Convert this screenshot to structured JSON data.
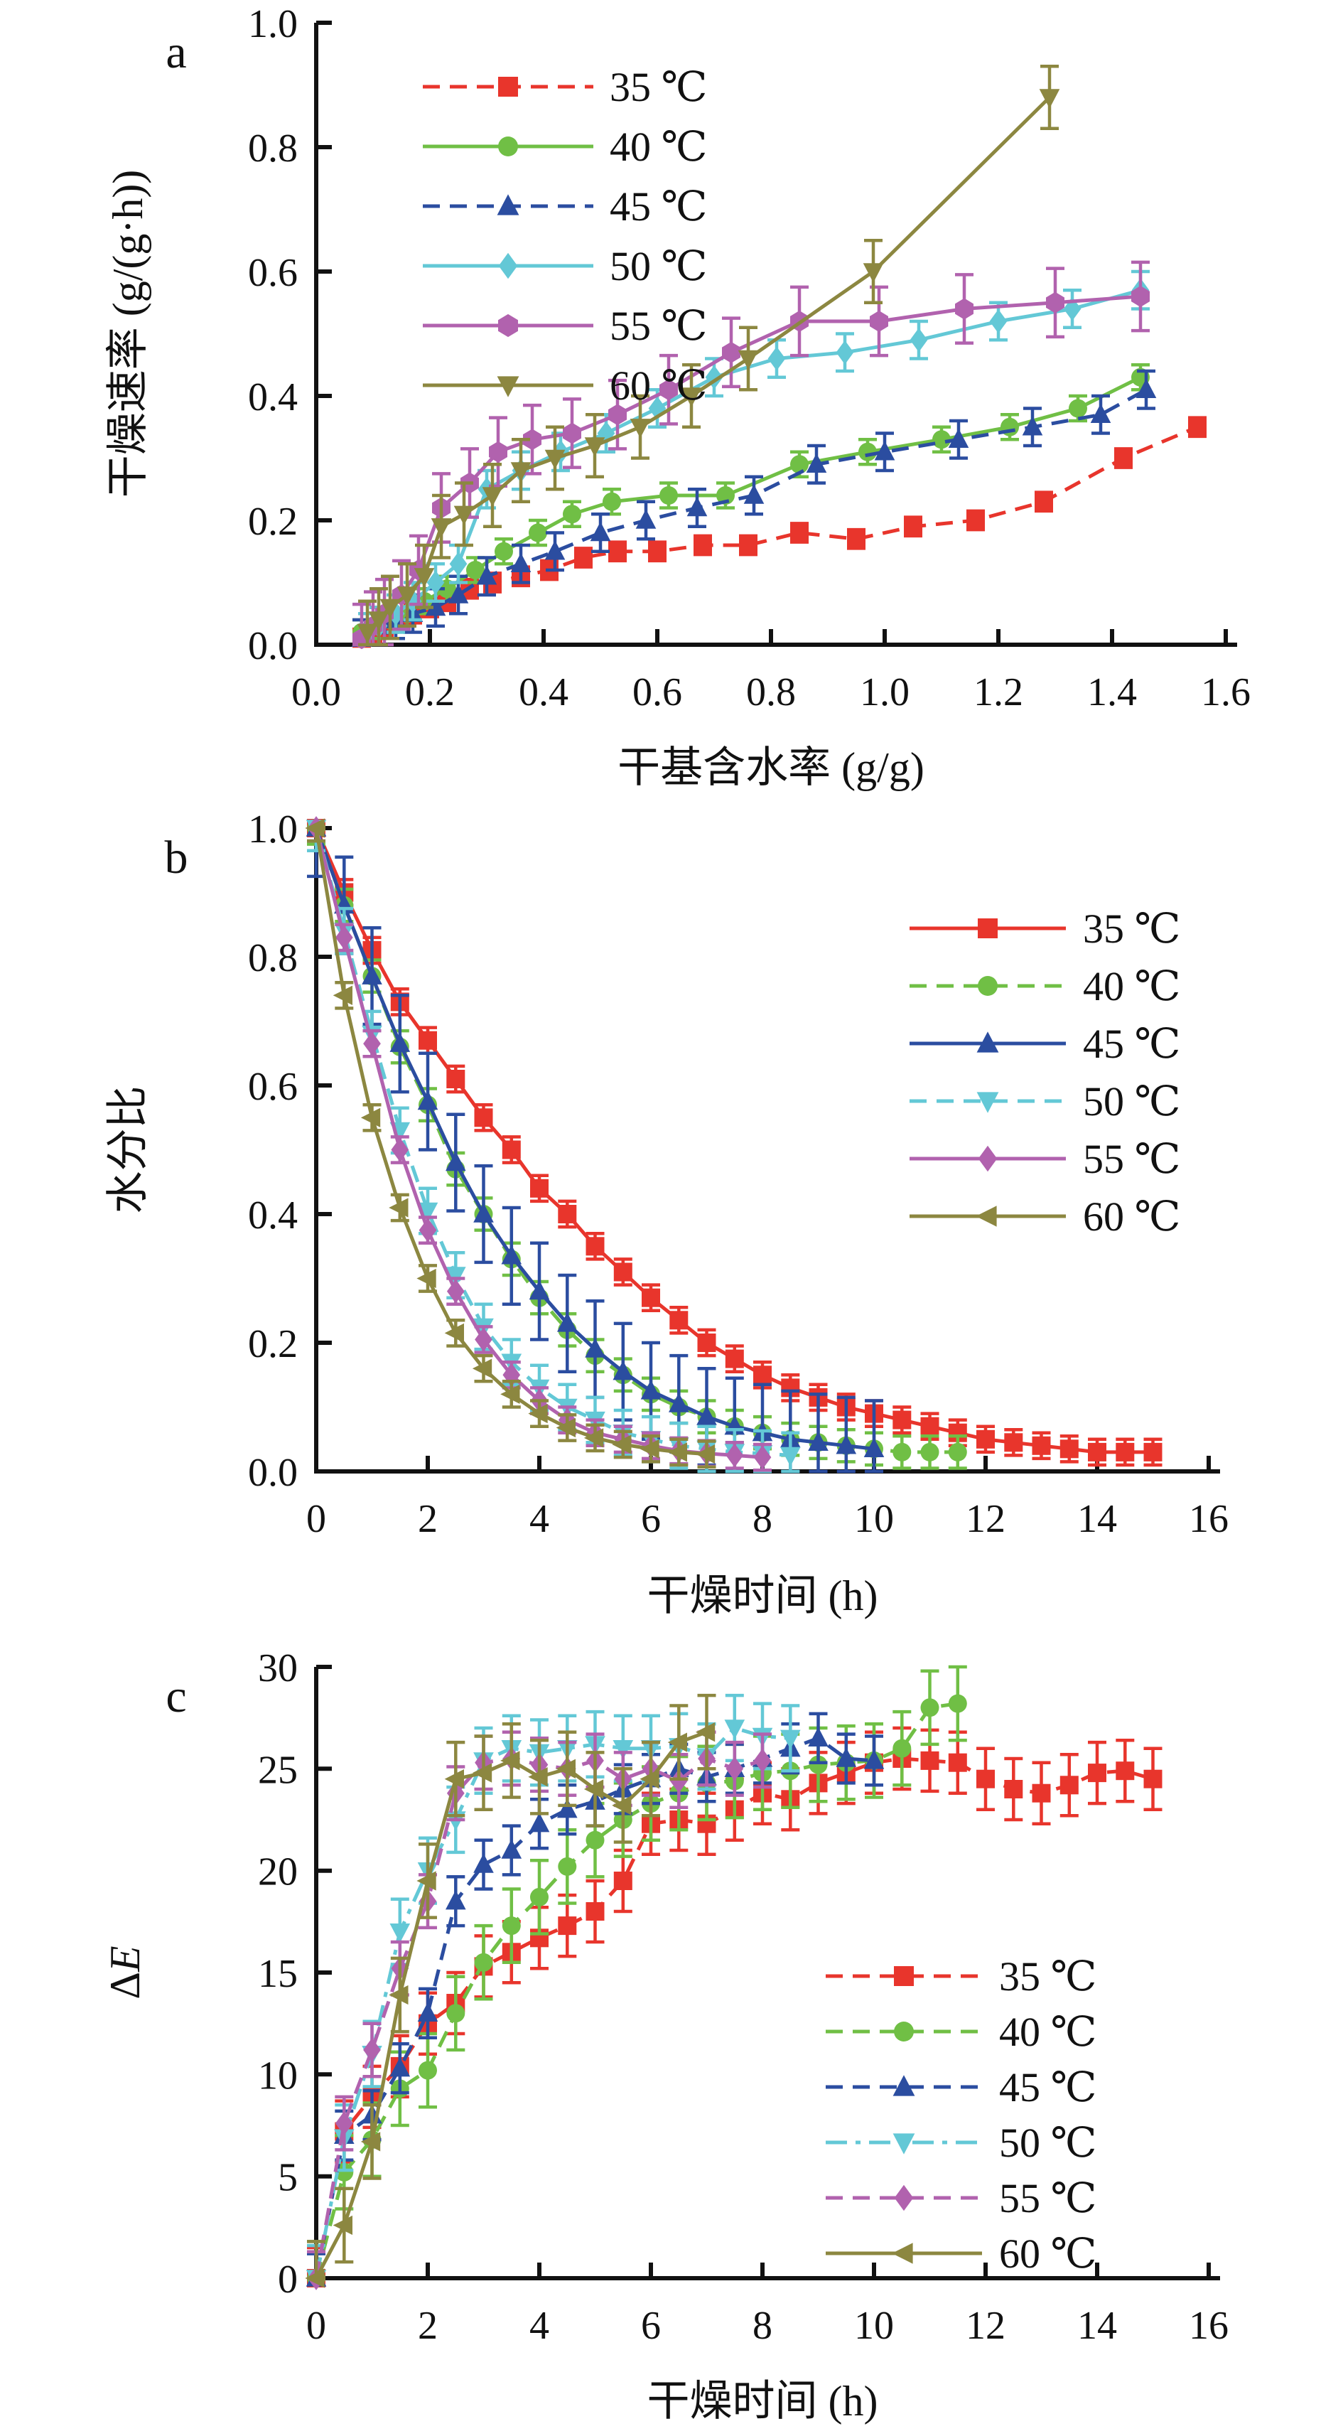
{
  "figure": {
    "background": "#ffffff",
    "temperature_unit": "℃",
    "panel_letters": [
      "a",
      "b",
      "c"
    ]
  },
  "chart_data": [
    {
      "id": "a",
      "type": "line",
      "panel_label": "a",
      "xlabel": "干基含水率 (g/g)",
      "ylabel_parts": [
        {
          "t": "干燥速率 (g/(g·h))",
          "italic": false
        }
      ],
      "xlim": [
        0,
        1.6
      ],
      "ylim": [
        0,
        1.0
      ],
      "grid": false,
      "legend_position": "upper-left-inside",
      "x_ticks": {
        "values": [
          0,
          0.2,
          0.4,
          0.6,
          0.8,
          1.0,
          1.2,
          1.4,
          1.6
        ],
        "labels": [
          "0.0",
          "0.2",
          "0.4",
          "0.6",
          "0.8",
          "1.0",
          "1.2",
          "1.4",
          "1.6"
        ]
      },
      "y_ticks": {
        "values": [
          0,
          0.2,
          0.4,
          0.6,
          0.8,
          1.0
        ],
        "labels": [
          "0.0",
          "0.2",
          "0.4",
          "0.6",
          "0.8",
          "1.0"
        ]
      },
      "series": [
        {
          "name": "35 ℃",
          "color": "#e8352c",
          "marker": "square",
          "line": "dashed",
          "err": 0.015,
          "x": [
            0.08,
            0.1,
            0.12,
            0.14,
            0.17,
            0.2,
            0.23,
            0.27,
            0.31,
            0.36,
            0.41,
            0.47,
            0.53,
            0.6,
            0.68,
            0.76,
            0.85,
            0.95,
            1.05,
            1.16,
            1.28,
            1.42,
            1.55
          ],
          "y": [
            0.01,
            0.02,
            0.03,
            0.04,
            0.05,
            0.06,
            0.07,
            0.09,
            0.1,
            0.11,
            0.12,
            0.14,
            0.15,
            0.15,
            0.16,
            0.16,
            0.18,
            0.17,
            0.19,
            0.2,
            0.23,
            0.3,
            0.35
          ]
        },
        {
          "name": "40 ℃",
          "color": "#70bf45",
          "marker": "circle",
          "line": "solid",
          "err": 0.02,
          "x": [
            0.08,
            0.1,
            0.13,
            0.16,
            0.19,
            0.23,
            0.28,
            0.33,
            0.39,
            0.45,
            0.52,
            0.62,
            0.72,
            0.85,
            0.97,
            1.1,
            1.22,
            1.34,
            1.45
          ],
          "y": [
            0.02,
            0.03,
            0.04,
            0.05,
            0.07,
            0.09,
            0.12,
            0.15,
            0.18,
            0.21,
            0.23,
            0.24,
            0.24,
            0.29,
            0.31,
            0.33,
            0.35,
            0.38,
            0.43
          ]
        },
        {
          "name": "45 ℃",
          "color": "#2b4da0",
          "marker": "triangle-up",
          "line": "dashed",
          "err": 0.03,
          "x": [
            0.08,
            0.11,
            0.14,
            0.17,
            0.21,
            0.25,
            0.3,
            0.36,
            0.42,
            0.5,
            0.58,
            0.67,
            0.77,
            0.88,
            1.0,
            1.13,
            1.26,
            1.38,
            1.46
          ],
          "y": [
            0.01,
            0.03,
            0.04,
            0.05,
            0.06,
            0.08,
            0.11,
            0.13,
            0.15,
            0.18,
            0.2,
            0.22,
            0.24,
            0.29,
            0.31,
            0.33,
            0.35,
            0.37,
            0.41
          ]
        },
        {
          "name": "50 ℃",
          "color": "#63c8d6",
          "marker": "diamond",
          "line": "solid",
          "err": 0.03,
          "x": [
            0.09,
            0.11,
            0.14,
            0.17,
            0.21,
            0.25,
            0.3,
            0.36,
            0.43,
            0.51,
            0.6,
            0.7,
            0.81,
            0.93,
            1.06,
            1.2,
            1.33,
            1.45
          ],
          "y": [
            0.02,
            0.03,
            0.05,
            0.07,
            0.1,
            0.13,
            0.25,
            0.28,
            0.31,
            0.34,
            0.38,
            0.43,
            0.46,
            0.47,
            0.49,
            0.52,
            0.54,
            0.57
          ]
        },
        {
          "name": "55 ℃",
          "color": "#b162ae",
          "marker": "hexagon",
          "line": "solid",
          "err": 0.055,
          "x": [
            0.08,
            0.1,
            0.12,
            0.15,
            0.18,
            0.22,
            0.27,
            0.32,
            0.38,
            0.45,
            0.53,
            0.62,
            0.73,
            0.85,
            0.99,
            1.14,
            1.3,
            1.45
          ],
          "y": [
            0.01,
            0.03,
            0.05,
            0.08,
            0.12,
            0.22,
            0.26,
            0.31,
            0.33,
            0.34,
            0.37,
            0.41,
            0.47,
            0.52,
            0.52,
            0.54,
            0.55,
            0.56
          ]
        },
        {
          "name": "60 ℃",
          "color": "#8c8740",
          "marker": "triangle-down",
          "line": "solid",
          "err": 0.05,
          "x": [
            0.09,
            0.11,
            0.13,
            0.16,
            0.19,
            0.22,
            0.26,
            0.31,
            0.36,
            0.42,
            0.49,
            0.57,
            0.66,
            0.76,
            0.98,
            1.29
          ],
          "y": [
            0.02,
            0.04,
            0.06,
            0.08,
            0.11,
            0.19,
            0.21,
            0.24,
            0.28,
            0.3,
            0.32,
            0.35,
            0.4,
            0.46,
            0.6,
            0.88
          ]
        }
      ]
    },
    {
      "id": "b",
      "type": "line",
      "panel_label": "b",
      "xlabel": "干燥时间 (h)",
      "ylabel_parts": [
        {
          "t": "水分比",
          "italic": false
        }
      ],
      "xlim": [
        0,
        16
      ],
      "ylim": [
        0,
        1.0
      ],
      "grid": false,
      "legend_position": "upper-right-inside",
      "x_ticks": {
        "values": [
          0,
          2,
          4,
          6,
          8,
          10,
          12,
          14,
          16
        ],
        "labels": [
          "0",
          "2",
          "4",
          "6",
          "8",
          "10",
          "12",
          "14",
          "16"
        ]
      },
      "y_ticks": {
        "values": [
          0,
          0.2,
          0.4,
          0.6,
          0.8,
          1.0
        ],
        "labels": [
          "0.0",
          "0.2",
          "0.4",
          "0.6",
          "0.8",
          "1.0"
        ]
      },
      "series": [
        {
          "name": "35 ℃",
          "color": "#e8352c",
          "marker": "square",
          "line": "solid",
          "err": 0.02,
          "x": [
            0,
            0.5,
            1,
            1.5,
            2,
            2.5,
            3,
            3.5,
            4,
            4.5,
            5,
            5.5,
            6,
            6.5,
            7,
            7.5,
            8,
            8.5,
            9,
            9.5,
            10,
            10.5,
            11,
            11.5,
            12,
            12.5,
            13,
            13.5,
            14,
            14.5,
            15
          ],
          "y": [
            1.0,
            0.9,
            0.81,
            0.73,
            0.67,
            0.61,
            0.55,
            0.5,
            0.44,
            0.4,
            0.35,
            0.31,
            0.27,
            0.235,
            0.2,
            0.175,
            0.15,
            0.13,
            0.115,
            0.1,
            0.09,
            0.08,
            0.07,
            0.06,
            0.05,
            0.045,
            0.04,
            0.035,
            0.03,
            0.03,
            0.03
          ]
        },
        {
          "name": "40 ℃",
          "color": "#70bf45",
          "marker": "circle",
          "line": "dashed",
          "err": 0.025,
          "x": [
            0,
            0.5,
            1,
            1.5,
            2,
            2.5,
            3,
            3.5,
            4,
            4.5,
            5,
            5.5,
            6,
            6.5,
            7,
            7.5,
            8,
            8.5,
            9,
            9.5,
            10,
            10.5,
            11,
            11.5
          ],
          "y": [
            1.0,
            0.88,
            0.77,
            0.66,
            0.57,
            0.47,
            0.4,
            0.33,
            0.27,
            0.22,
            0.18,
            0.15,
            0.12,
            0.1,
            0.085,
            0.07,
            0.06,
            0.05,
            0.045,
            0.04,
            0.035,
            0.03,
            0.03,
            0.03
          ]
        },
        {
          "name": "45 ℃",
          "color": "#2b4da0",
          "marker": "triangle-up",
          "line": "solid",
          "err": 0.075,
          "x": [
            0,
            0.5,
            1,
            1.5,
            2,
            2.5,
            3,
            3.5,
            4,
            4.5,
            5,
            5.5,
            6,
            6.5,
            7,
            7.5,
            8,
            8.5,
            9,
            9.5,
            10
          ],
          "y": [
            1.0,
            0.88,
            0.77,
            0.665,
            0.575,
            0.48,
            0.4,
            0.335,
            0.28,
            0.23,
            0.19,
            0.155,
            0.125,
            0.105,
            0.085,
            0.07,
            0.06,
            0.05,
            0.045,
            0.04,
            0.035
          ]
        },
        {
          "name": "50 ℃",
          "color": "#63c8d6",
          "marker": "triangle-down",
          "line": "dashed",
          "err": 0.035,
          "x": [
            0,
            0.5,
            1,
            1.5,
            2,
            2.5,
            3,
            3.5,
            4,
            4.5,
            5,
            5.5,
            6,
            6.5,
            7,
            7.5,
            8,
            8.5
          ],
          "y": [
            1.0,
            0.84,
            0.68,
            0.53,
            0.405,
            0.305,
            0.225,
            0.17,
            0.13,
            0.1,
            0.08,
            0.06,
            0.05,
            0.04,
            0.035,
            0.03,
            0.028,
            0.025
          ]
        },
        {
          "name": "55 ℃",
          "color": "#b162ae",
          "marker": "diamond",
          "line": "solid",
          "err": 0.02,
          "x": [
            0,
            0.5,
            1,
            1.5,
            2,
            2.5,
            3,
            3.5,
            4,
            4.5,
            5,
            5.5,
            6,
            6.5,
            7,
            7.5,
            8
          ],
          "y": [
            1.0,
            0.83,
            0.665,
            0.5,
            0.375,
            0.28,
            0.205,
            0.15,
            0.11,
            0.08,
            0.06,
            0.05,
            0.04,
            0.032,
            0.028,
            0.025,
            0.022
          ]
        },
        {
          "name": "60 ℃",
          "color": "#8c8740",
          "marker": "triangle-left",
          "line": "solid",
          "err": 0.02,
          "x": [
            0,
            0.5,
            1,
            1.5,
            2,
            2.5,
            3,
            3.5,
            4,
            4.5,
            5,
            5.5,
            6,
            6.5,
            7
          ],
          "y": [
            1.0,
            0.74,
            0.55,
            0.41,
            0.3,
            0.215,
            0.16,
            0.12,
            0.09,
            0.068,
            0.052,
            0.042,
            0.035,
            0.03,
            0.027
          ]
        }
      ]
    },
    {
      "id": "c",
      "type": "line",
      "panel_label": "c",
      "xlabel": "干燥时间 (h)",
      "ylabel_parts": [
        {
          "t": "Δ",
          "italic": false
        },
        {
          "t": "E",
          "italic": true
        }
      ],
      "xlim": [
        0,
        16
      ],
      "ylim": [
        0,
        30
      ],
      "grid": false,
      "legend_position": "lower-right-inside",
      "x_ticks": {
        "values": [
          0,
          2,
          4,
          6,
          8,
          10,
          12,
          14,
          16
        ],
        "labels": [
          "0",
          "2",
          "4",
          "6",
          "8",
          "10",
          "12",
          "14",
          "16"
        ]
      },
      "y_ticks": {
        "values": [
          0,
          5,
          10,
          15,
          20,
          25,
          30
        ],
        "labels": [
          "0",
          "5",
          "10",
          "15",
          "20",
          "25",
          "30"
        ]
      },
      "series": [
        {
          "name": "35 ℃",
          "color": "#e8352c",
          "marker": "square",
          "line": "dashed",
          "err": 1.5,
          "x": [
            0,
            0.5,
            1,
            1.5,
            2,
            2.5,
            3,
            3.5,
            4,
            4.5,
            5,
            5.5,
            6,
            6.5,
            7,
            7.5,
            8,
            8.5,
            9,
            9.5,
            10,
            10.5,
            11,
            11.5,
            12,
            12.5,
            13,
            13.5,
            14,
            14.5,
            15
          ],
          "y": [
            0,
            7.2,
            8.9,
            10.4,
            12.5,
            13.5,
            15.3,
            16.0,
            16.7,
            17.3,
            18.0,
            19.5,
            22.3,
            22.5,
            22.3,
            23.0,
            23.8,
            23.5,
            24.3,
            24.8,
            25.3,
            25.5,
            25.4,
            25.3,
            24.5,
            24.0,
            23.8,
            24.2,
            24.8,
            24.9,
            24.5
          ]
        },
        {
          "name": "40 ℃",
          "color": "#70bf45",
          "marker": "circle",
          "line": "dashed",
          "err": 1.8,
          "x": [
            0,
            0.5,
            1,
            1.5,
            2,
            2.5,
            3,
            3.5,
            4,
            4.5,
            5,
            5.5,
            6,
            6.5,
            7,
            7.5,
            8,
            8.5,
            9,
            9.5,
            10,
            10.5,
            11,
            11.5
          ],
          "y": [
            0,
            5.2,
            6.8,
            9.3,
            10.2,
            13.0,
            15.5,
            17.3,
            18.7,
            20.2,
            21.5,
            22.5,
            23.3,
            23.8,
            24.3,
            24.4,
            24.8,
            24.9,
            25.2,
            25.3,
            25.4,
            26.0,
            28.0,
            28.2
          ]
        },
        {
          "name": "45 ℃",
          "color": "#2b4da0",
          "marker": "triangle-up",
          "line": "dashed",
          "err": 1.2,
          "x": [
            0,
            0.5,
            1,
            1.5,
            2,
            2.5,
            3,
            3.5,
            4,
            4.5,
            5,
            5.5,
            6,
            6.5,
            7,
            7.5,
            8,
            8.5,
            9,
            9.5,
            10
          ],
          "y": [
            0,
            7.0,
            8.0,
            10.3,
            13.0,
            18.5,
            20.3,
            21.0,
            22.3,
            23.0,
            23.4,
            24.0,
            24.5,
            25.0,
            24.6,
            25.0,
            25.5,
            26.0,
            26.5,
            25.5,
            25.4
          ]
        },
        {
          "name": "50 ℃",
          "color": "#63c8d6",
          "marker": "triangle-down",
          "line": "dash-dot",
          "err": 1.6,
          "x": [
            0,
            0.5,
            1,
            1.5,
            2,
            2.5,
            3,
            3.5,
            4,
            4.5,
            5,
            5.5,
            6,
            6.5,
            7,
            7.5,
            8,
            8.5
          ],
          "y": [
            0,
            6.9,
            11.0,
            17.0,
            20.0,
            22.5,
            25.4,
            26.0,
            25.8,
            26.0,
            26.2,
            26.0,
            26.0,
            26.1,
            25.6,
            27.0,
            26.6,
            26.5
          ]
        },
        {
          "name": "55 ℃",
          "color": "#b162ae",
          "marker": "diamond",
          "line": "dashed",
          "err": 1.3,
          "x": [
            0,
            0.5,
            1,
            1.5,
            2,
            2.5,
            3,
            3.5,
            4,
            4.5,
            5,
            5.5,
            6,
            6.5,
            7,
            7.5,
            8
          ],
          "y": [
            0,
            7.6,
            11.2,
            15.2,
            18.5,
            23.8,
            25.3,
            25.5,
            25.2,
            25.0,
            25.4,
            24.5,
            25.0,
            24.4,
            25.5,
            25.0,
            25.4
          ]
        },
        {
          "name": "60 ℃",
          "color": "#8c8740",
          "marker": "triangle-left",
          "line": "solid",
          "err": 1.8,
          "x": [
            0,
            0.5,
            1,
            1.5,
            2,
            2.5,
            3,
            3.5,
            4,
            4.5,
            5,
            5.5,
            6,
            6.5,
            7
          ],
          "y": [
            0,
            2.6,
            6.7,
            13.9,
            19.5,
            24.5,
            24.8,
            25.4,
            24.6,
            25.0,
            24.0,
            23.2,
            24.5,
            26.3,
            26.8
          ]
        }
      ]
    }
  ]
}
